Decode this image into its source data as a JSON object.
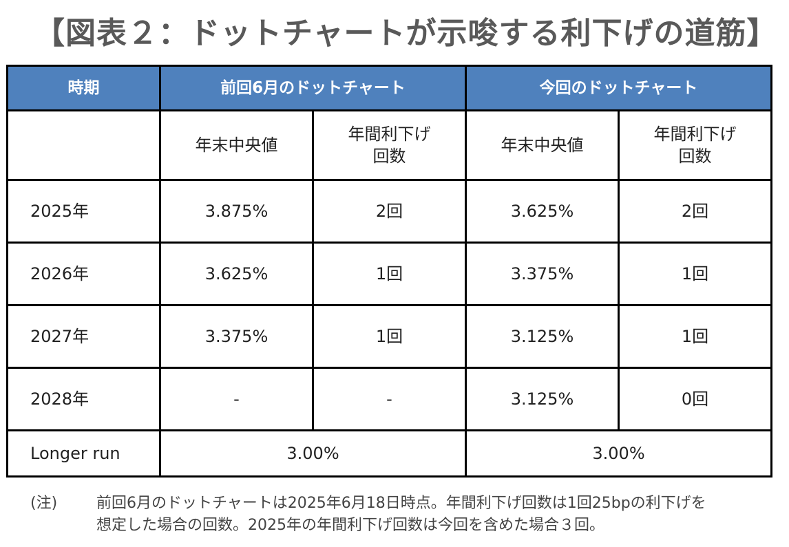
{
  "title": "【図表２：ドットチャートが示唆する利下げの道筋】",
  "table": {
    "headers": [
      "時期",
      "前回6月のドットチャート",
      "今回のドットチャート"
    ],
    "subheaders": [
      "年末中央値",
      "年間利下げ\n回数",
      "年末中央値",
      "年間利下げ\n回数"
    ],
    "rows": [
      [
        "2025年",
        "3.875%",
        "2回",
        "3.625%",
        "2回"
      ],
      [
        "2026年",
        "3.625%",
        "1回",
        "3.375%",
        "1回"
      ],
      [
        "2027年",
        "3.375%",
        "1回",
        "3.125%",
        "1回"
      ],
      [
        "2028年",
        "-",
        "-",
        "3.125%",
        "0回"
      ]
    ],
    "longer_run": [
      "Longer run",
      "3.00%",
      "3.00%"
    ]
  },
  "note": {
    "label": "(注)",
    "lines": [
      "前回6月のドットチャートは2025年6月18日時点。年間利下げ回数は1回25bpの利下げを",
      "想定した場合の回数。2025年の年間利下げ回数は今回を含めた場合３回。"
    ]
  },
  "colors": {
    "header_bg": "#4f81bd",
    "header_text": "#ffffff"
  }
}
